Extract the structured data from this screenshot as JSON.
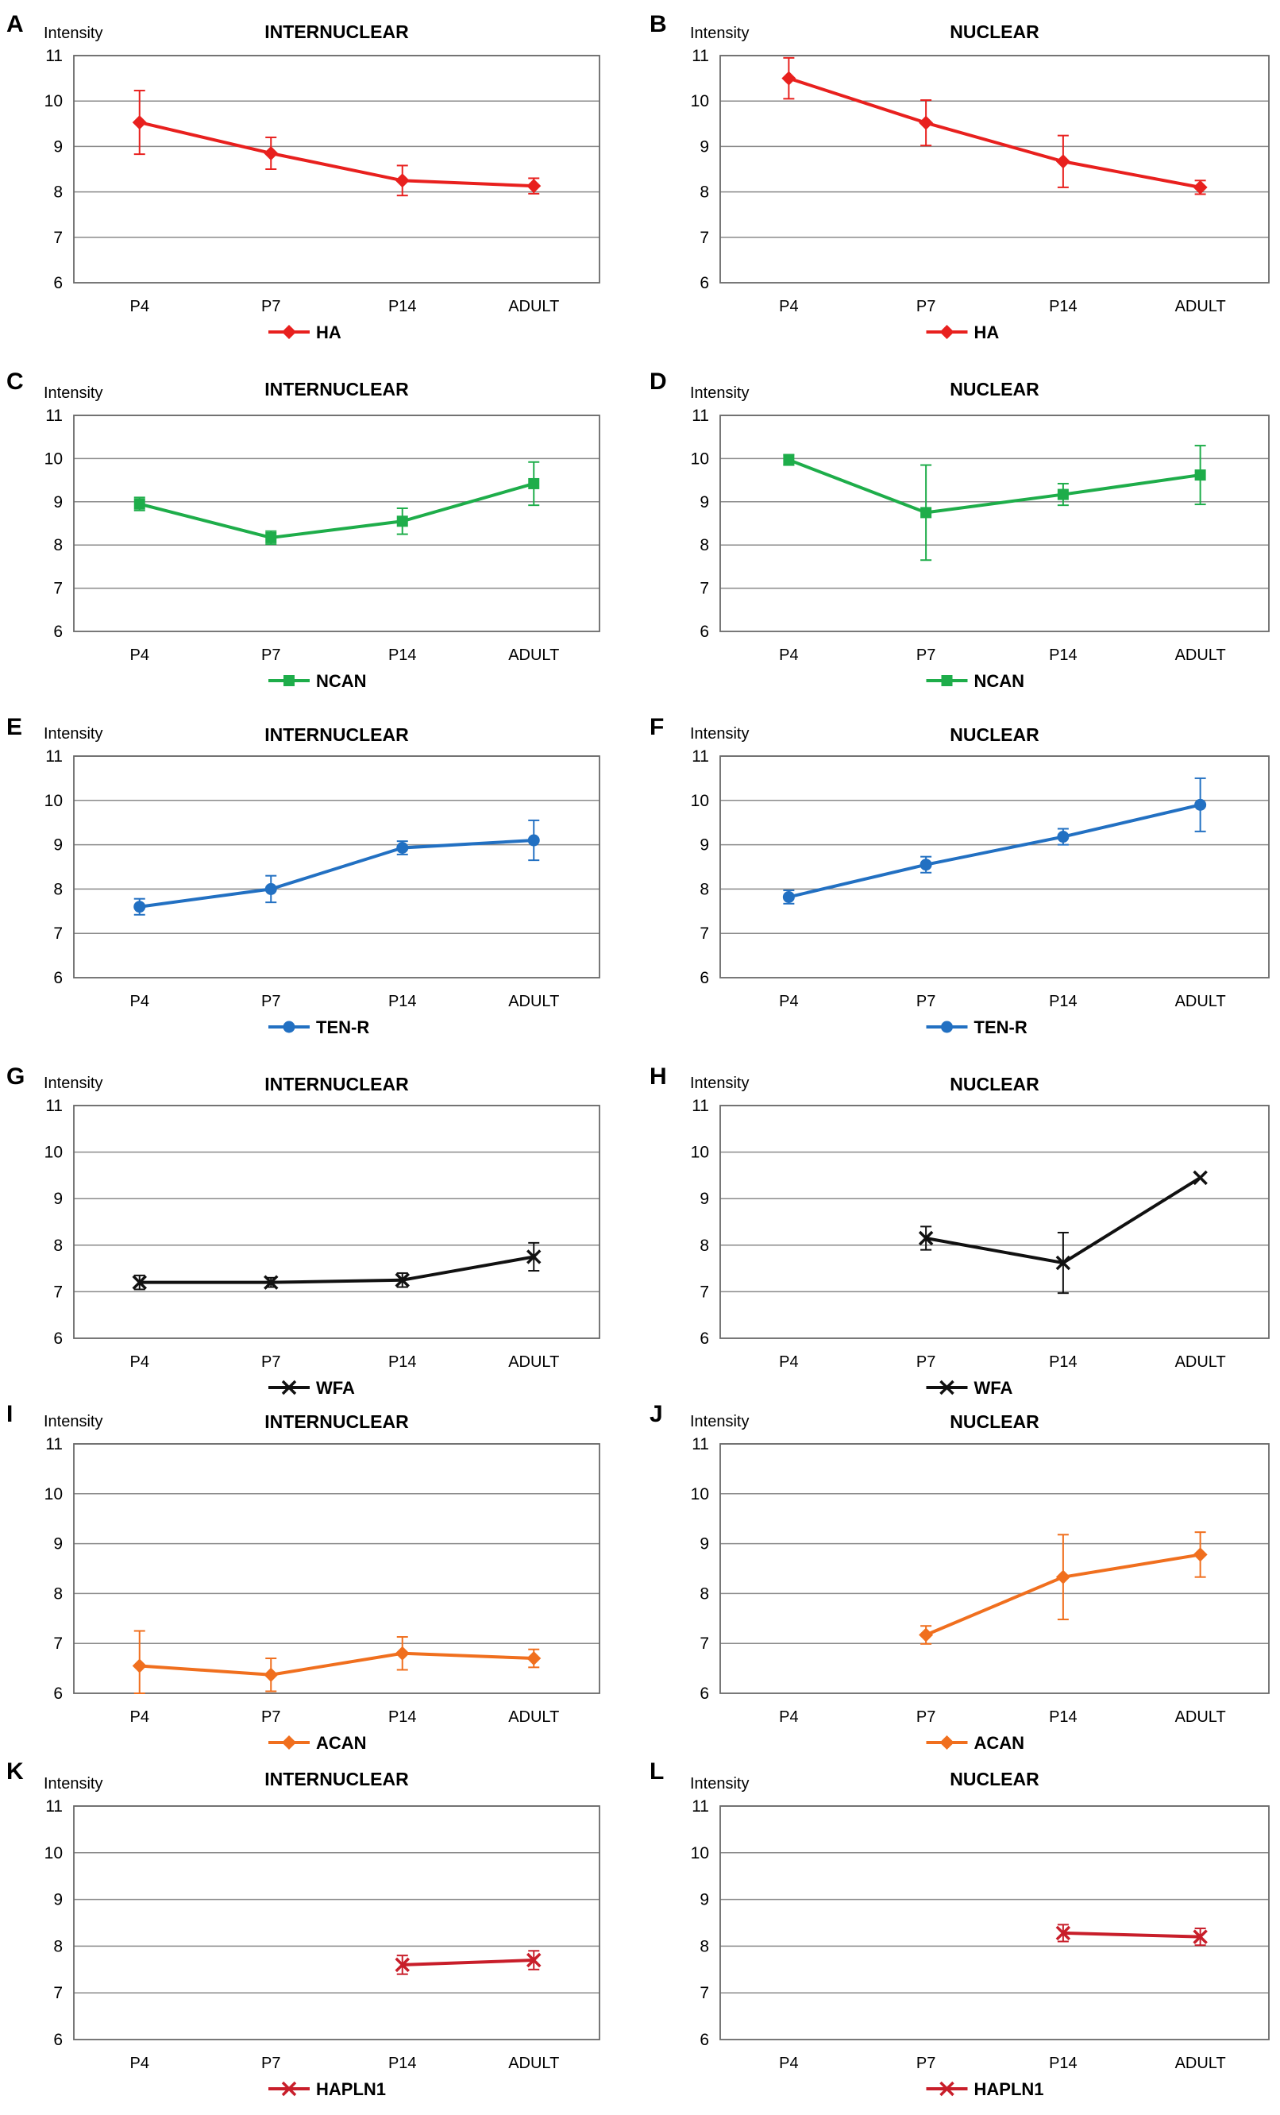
{
  "chart_data": [
    {
      "letter": "A",
      "type": "line",
      "title": "INTERNUCLEAR",
      "ylabel": "Intensity",
      "yticks": [
        6,
        7,
        8,
        9,
        10,
        11
      ],
      "ylim": [
        6,
        11
      ],
      "categories": [
        "P4",
        "P7",
        "P14",
        "ADULT"
      ],
      "series": [
        {
          "name": "HA",
          "color": "#e8201e",
          "marker": "diamond",
          "values": [
            9.53,
            8.85,
            8.25,
            8.13
          ],
          "errors": [
            0.7,
            0.35,
            0.33,
            0.17
          ]
        }
      ]
    },
    {
      "letter": "B",
      "type": "line",
      "title": "NUCLEAR",
      "ylabel": "Intensity",
      "yticks": [
        6,
        7,
        8,
        9,
        10,
        11
      ],
      "ylim": [
        6,
        11
      ],
      "categories": [
        "P4",
        "P7",
        "P14",
        "ADULT"
      ],
      "series": [
        {
          "name": "HA",
          "color": "#e8201e",
          "marker": "diamond",
          "values": [
            10.5,
            9.52,
            8.67,
            8.1
          ],
          "errors": [
            0.45,
            0.5,
            0.57,
            0.15
          ]
        }
      ]
    },
    {
      "letter": "C",
      "type": "line",
      "title": "INTERNUCLEAR",
      "ylabel": "Intensity",
      "yticks": [
        6,
        7,
        8,
        9,
        10,
        11
      ],
      "ylim": [
        6,
        11
      ],
      "categories": [
        "P4",
        "P7",
        "P14",
        "ADULT"
      ],
      "series": [
        {
          "name": "NCAN",
          "color": "#1ead4a",
          "marker": "square",
          "values": [
            8.95,
            8.17,
            8.55,
            9.42
          ],
          "errors": [
            0.15,
            0.15,
            0.3,
            0.5
          ]
        }
      ]
    },
    {
      "letter": "D",
      "type": "line",
      "title": "NUCLEAR",
      "ylabel": "Intensity",
      "yticks": [
        6,
        7,
        8,
        9,
        10,
        11
      ],
      "ylim": [
        6,
        11
      ],
      "categories": [
        "P4",
        "P7",
        "P14",
        "ADULT"
      ],
      "series": [
        {
          "name": "NCAN",
          "color": "#1ead4a",
          "marker": "square",
          "values": [
            9.97,
            8.75,
            9.17,
            9.62
          ],
          "errors": [
            0.12,
            1.1,
            0.25,
            0.68
          ]
        }
      ]
    },
    {
      "letter": "E",
      "type": "line",
      "title": "INTERNUCLEAR",
      "ylabel": "Intensity",
      "yticks": [
        6,
        7,
        8,
        9,
        10,
        11
      ],
      "ylim": [
        6,
        11
      ],
      "categories": [
        "P4",
        "P7",
        "P14",
        "ADULT"
      ],
      "series": [
        {
          "name": "TEN-R",
          "color": "#2270c2",
          "marker": "circle",
          "values": [
            7.6,
            8.0,
            8.93,
            9.1
          ],
          "errors": [
            0.18,
            0.3,
            0.15,
            0.45
          ]
        }
      ]
    },
    {
      "letter": "F",
      "type": "line",
      "title": "NUCLEAR",
      "ylabel": "Intensity",
      "yticks": [
        6,
        7,
        8,
        9,
        10,
        11
      ],
      "ylim": [
        6,
        11
      ],
      "categories": [
        "P4",
        "P7",
        "P14",
        "ADULT"
      ],
      "series": [
        {
          "name": "TEN-R",
          "color": "#2270c2",
          "marker": "circle",
          "values": [
            7.82,
            8.55,
            9.18,
            9.9
          ],
          "errors": [
            0.15,
            0.18,
            0.18,
            0.6
          ]
        }
      ]
    },
    {
      "letter": "G",
      "type": "line",
      "title": "INTERNUCLEAR",
      "ylabel": "Intensity",
      "yticks": [
        6,
        7,
        8,
        9,
        10,
        11
      ],
      "ylim": [
        6,
        11
      ],
      "categories": [
        "P4",
        "P7",
        "P14",
        "ADULT"
      ],
      "series": [
        {
          "name": "WFA",
          "color": "#111111",
          "marker": "x",
          "values": [
            7.2,
            7.2,
            7.25,
            7.75
          ],
          "errors": [
            0.15,
            0.1,
            0.15,
            0.3
          ]
        }
      ]
    },
    {
      "letter": "H",
      "type": "line",
      "title": "NUCLEAR",
      "ylabel": "Intensity",
      "yticks": [
        6,
        7,
        8,
        9,
        10,
        11
      ],
      "ylim": [
        6,
        11
      ],
      "categories": [
        "P4",
        "P7",
        "P14",
        "ADULT"
      ],
      "series": [
        {
          "name": "WFA",
          "color": "#111111",
          "marker": "x",
          "values": [
            null,
            8.15,
            7.62,
            9.45
          ],
          "errors": [
            null,
            0.25,
            0.65,
            0
          ]
        }
      ]
    },
    {
      "letter": "I",
      "type": "line",
      "title": "INTERNUCLEAR",
      "ylabel": "Intensity",
      "yticks": [
        6,
        7,
        8,
        9,
        10,
        11
      ],
      "ylim": [
        6,
        11
      ],
      "categories": [
        "P4",
        "P7",
        "P14",
        "ADULT"
      ],
      "series": [
        {
          "name": "ACAN",
          "color": "#f06f1e",
          "marker": "diamond",
          "values": [
            6.55,
            6.37,
            6.8,
            6.7
          ],
          "errors": [
            0.7,
            0.33,
            0.33,
            0.18
          ]
        }
      ]
    },
    {
      "letter": "J",
      "type": "line",
      "title": "NUCLEAR",
      "ylabel": "Intensity",
      "yticks": [
        6,
        7,
        8,
        9,
        10,
        11
      ],
      "ylim": [
        6,
        11
      ],
      "categories": [
        "P4",
        "P7",
        "P14",
        "ADULT"
      ],
      "series": [
        {
          "name": "ACAN",
          "color": "#f06f1e",
          "marker": "diamond",
          "values": [
            null,
            7.17,
            8.33,
            8.78
          ],
          "errors": [
            null,
            0.18,
            0.85,
            0.45
          ]
        }
      ]
    },
    {
      "letter": "K",
      "type": "line",
      "title": "INTERNUCLEAR",
      "ylabel": "Intensity",
      "yticks": [
        6,
        7,
        8,
        9,
        10,
        11
      ],
      "ylim": [
        6,
        11
      ],
      "categories": [
        "P4",
        "P7",
        "P14",
        "ADULT"
      ],
      "series": [
        {
          "name": "HAPLN1",
          "color": "#c81e2a",
          "marker": "x",
          "values": [
            null,
            null,
            7.6,
            7.7
          ],
          "errors": [
            null,
            null,
            0.2,
            0.2
          ]
        }
      ]
    },
    {
      "letter": "L",
      "type": "line",
      "title": "NUCLEAR",
      "ylabel": "Intensity",
      "yticks": [
        6,
        7,
        8,
        9,
        10,
        11
      ],
      "ylim": [
        6,
        11
      ],
      "categories": [
        "P4",
        "P7",
        "P14",
        "ADULT"
      ],
      "series": [
        {
          "name": "HAPLN1",
          "color": "#c81e2a",
          "marker": "x",
          "values": [
            null,
            null,
            8.28,
            8.2
          ],
          "errors": [
            null,
            null,
            0.18,
            0.18
          ]
        }
      ]
    }
  ]
}
